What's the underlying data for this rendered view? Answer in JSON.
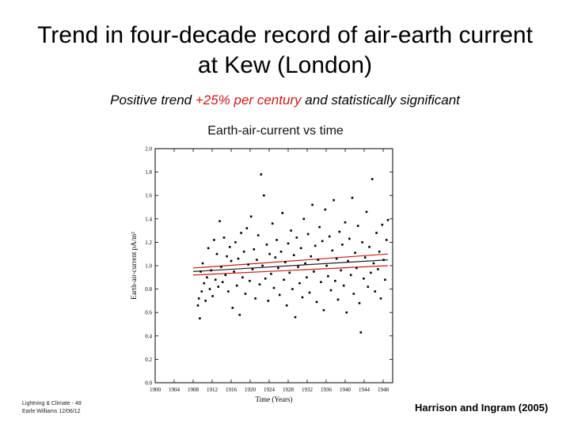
{
  "slide": {
    "title_line1": "Trend in four-decade record of air-earth current",
    "title_line2": "at Kew (London)",
    "subtitle_pre": "Positive trend ",
    "subtitle_highlight": "+25% per century",
    "subtitle_post": " and  statistically significant",
    "highlight_color": "#cc1a1a",
    "footer_left_line1": "Lightning & Climate - 48",
    "footer_left_line2": "Earle Williams 12/06/12",
    "citation": "Harrison and Ingram (2005)"
  },
  "chart_data": {
    "type": "scatter",
    "title": "Earth-air-current vs time",
    "xlabel": "Time (Years)",
    "ylabel": "Earth-air-current pA/m²",
    "xlim": [
      1900,
      1950
    ],
    "ylim": [
      0,
      2.0
    ],
    "x_ticks": [
      "1900",
      "1904",
      "1908",
      "1912",
      "1916",
      "1920",
      "1924",
      "1928",
      "1932",
      "1936",
      "1940",
      "1944",
      "1948"
    ],
    "y_ticks": [
      "0.0",
      "0.2",
      "0.4",
      "0.6",
      "0.8",
      "1.0",
      "1.2",
      "1.4",
      "1.6",
      "1.8",
      "2.0"
    ],
    "point_color": "#000000",
    "points": [
      [
        1909.0,
        0.66
      ],
      [
        1909.2,
        0.72
      ],
      [
        1909.4,
        0.55
      ],
      [
        1909.6,
        0.95
      ],
      [
        1909.8,
        0.78
      ],
      [
        1910.0,
        1.02
      ],
      [
        1910.3,
        0.85
      ],
      [
        1910.6,
        0.7
      ],
      [
        1910.9,
        0.9
      ],
      [
        1911.2,
        1.15
      ],
      [
        1911.5,
        0.8
      ],
      [
        1911.8,
        0.96
      ],
      [
        1912.1,
        0.74
      ],
      [
        1912.4,
        1.22
      ],
      [
        1912.7,
        0.88
      ],
      [
        1913.0,
        1.1
      ],
      [
        1913.3,
        0.82
      ],
      [
        1913.6,
        1.38
      ],
      [
        1913.9,
        0.99
      ],
      [
        1914.2,
        0.86
      ],
      [
        1914.5,
        1.24
      ],
      [
        1914.8,
        0.92
      ],
      [
        1915.1,
        1.08
      ],
      [
        1915.4,
        0.78
      ],
      [
        1915.7,
        1.16
      ],
      [
        1916.0,
        1.04
      ],
      [
        1916.3,
        0.64
      ],
      [
        1916.6,
        0.95
      ],
      [
        1916.9,
        1.2
      ],
      [
        1917.2,
        0.83
      ],
      [
        1917.5,
        1.06
      ],
      [
        1917.8,
        0.58
      ],
      [
        1918.1,
        1.28
      ],
      [
        1918.4,
        0.9
      ],
      [
        1918.7,
        1.12
      ],
      [
        1919.0,
        0.76
      ],
      [
        1919.3,
        1.32
      ],
      [
        1919.6,
        1.01
      ],
      [
        1919.9,
        0.87
      ],
      [
        1920.2,
        1.42
      ],
      [
        1920.5,
        0.97
      ],
      [
        1920.8,
        1.14
      ],
      [
        1921.1,
        0.72
      ],
      [
        1921.4,
        1.05
      ],
      [
        1921.7,
        1.26
      ],
      [
        1922.0,
        0.84
      ],
      [
        1922.3,
        1.78
      ],
      [
        1922.6,
        1.0
      ],
      [
        1922.9,
        1.6
      ],
      [
        1923.2,
        0.89
      ],
      [
        1923.5,
        1.18
      ],
      [
        1923.8,
        0.7
      ],
      [
        1924.1,
        1.1
      ],
      [
        1924.4,
        0.93
      ],
      [
        1924.7,
        1.36
      ],
      [
        1925.0,
        0.81
      ],
      [
        1925.3,
        1.07
      ],
      [
        1925.6,
        1.22
      ],
      [
        1925.9,
        0.98
      ],
      [
        1926.2,
        0.75
      ],
      [
        1926.5,
        1.12
      ],
      [
        1926.8,
        1.45
      ],
      [
        1927.1,
        0.88
      ],
      [
        1927.4,
        1.03
      ],
      [
        1927.7,
        0.66
      ],
      [
        1928.0,
        1.19
      ],
      [
        1928.3,
        0.94
      ],
      [
        1928.6,
        1.3
      ],
      [
        1928.9,
        0.8
      ],
      [
        1929.2,
        1.09
      ],
      [
        1929.5,
        0.56
      ],
      [
        1929.8,
        1.24
      ],
      [
        1930.1,
        0.99
      ],
      [
        1930.4,
        0.85
      ],
      [
        1930.7,
        1.15
      ],
      [
        1931.0,
        0.73
      ],
      [
        1931.3,
        1.4
      ],
      [
        1931.6,
        1.02
      ],
      [
        1931.9,
        0.9
      ],
      [
        1932.2,
        1.27
      ],
      [
        1932.5,
        0.77
      ],
      [
        1932.8,
        1.08
      ],
      [
        1933.1,
        1.52
      ],
      [
        1933.4,
        0.95
      ],
      [
        1933.7,
        1.17
      ],
      [
        1934.0,
        0.69
      ],
      [
        1934.3,
        1.05
      ],
      [
        1934.6,
        1.33
      ],
      [
        1934.9,
        0.86
      ],
      [
        1935.2,
        1.21
      ],
      [
        1935.5,
        0.62
      ],
      [
        1935.8,
        1.48
      ],
      [
        1936.1,
        1.0
      ],
      [
        1936.4,
        0.91
      ],
      [
        1936.7,
        1.25
      ],
      [
        1937.0,
        0.79
      ],
      [
        1937.3,
        1.13
      ],
      [
        1937.6,
        1.56
      ],
      [
        1937.9,
        0.87
      ],
      [
        1938.2,
        1.06
      ],
      [
        1938.5,
        0.71
      ],
      [
        1938.8,
        1.29
      ],
      [
        1939.1,
        0.96
      ],
      [
        1939.4,
        1.18
      ],
      [
        1939.7,
        0.83
      ],
      [
        1940.0,
        1.37
      ],
      [
        1940.3,
        0.6
      ],
      [
        1940.6,
        1.04
      ],
      [
        1940.9,
        1.23
      ],
      [
        1941.2,
        0.92
      ],
      [
        1941.5,
        1.58
      ],
      [
        1941.8,
        0.76
      ],
      [
        1942.1,
        1.11
      ],
      [
        1942.4,
        0.98
      ],
      [
        1942.7,
        1.34
      ],
      [
        1943.0,
        0.68
      ],
      [
        1943.3,
        0.43
      ],
      [
        1943.6,
        1.2
      ],
      [
        1943.9,
        0.89
      ],
      [
        1944.2,
        1.07
      ],
      [
        1944.5,
        1.46
      ],
      [
        1944.8,
        0.82
      ],
      [
        1945.1,
        1.16
      ],
      [
        1945.4,
        0.94
      ],
      [
        1945.7,
        1.74
      ],
      [
        1946.0,
        1.02
      ],
      [
        1946.3,
        0.78
      ],
      [
        1946.6,
        1.28
      ],
      [
        1946.9,
        0.97
      ],
      [
        1947.2,
        1.12
      ],
      [
        1947.5,
        0.72
      ],
      [
        1947.8,
        1.35
      ],
      [
        1948.1,
        1.05
      ],
      [
        1948.4,
        0.88
      ],
      [
        1948.7,
        1.22
      ],
      [
        1949.0,
        1.39
      ]
    ],
    "trend_lines": [
      {
        "color": "#222222",
        "x": [
          1908,
          1949
        ],
        "y": [
          0.95,
          1.05
        ]
      },
      {
        "color": "#cc1a1a",
        "x": [
          1908,
          1949
        ],
        "y": [
          0.98,
          1.1
        ]
      },
      {
        "color": "#cc1a1a",
        "x": [
          1908,
          1949
        ],
        "y": [
          0.92,
          1.0
        ]
      }
    ]
  }
}
